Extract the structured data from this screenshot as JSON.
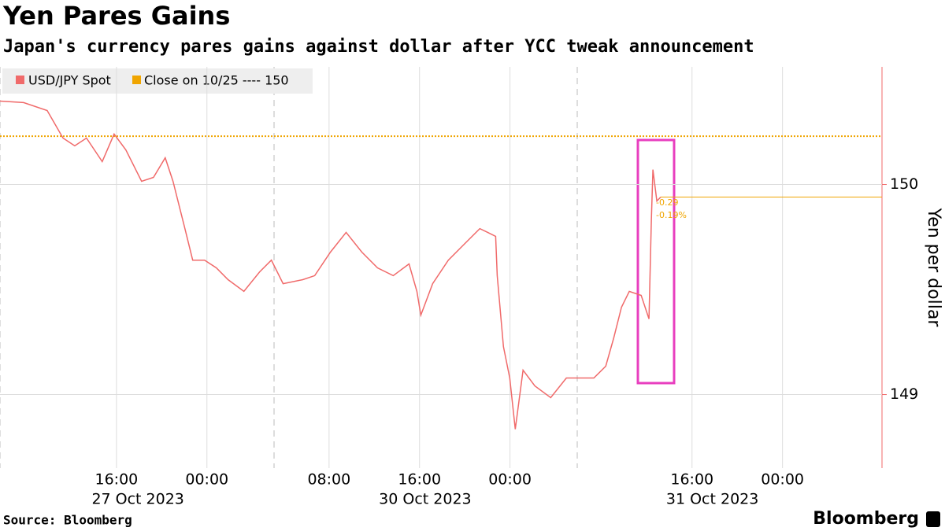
{
  "chart_data": {
    "type": "line",
    "title": "Yen Pares Gains",
    "subtitle": "Japan's currency pares gains against dollar after YCC tweak announcement",
    "y_label": "Yen per dollar",
    "source": "Source: Bloomberg",
    "brand": "Bloomberg",
    "xlim": [
      0,
      78
    ],
    "xticks": [
      {
        "value": 10.3,
        "label": "16:00"
      },
      {
        "value": 18.3,
        "label": "00:00"
      },
      {
        "value": 29.1,
        "label": "08:00"
      },
      {
        "value": 37.1,
        "label": "16:00"
      },
      {
        "value": 45.1,
        "label": "00:00"
      },
      {
        "value": 61.2,
        "label": "16:00"
      },
      {
        "value": 69.2,
        "label": "00:00"
      }
    ],
    "date_labels": [
      {
        "value": 12.2,
        "label": "27 Oct 2023"
      },
      {
        "value": 37.6,
        "label": "30 Oct 2023"
      },
      {
        "value": 63.0,
        "label": "31 Oct 2023"
      }
    ],
    "ylim": [
      148.65,
      150.56
    ],
    "yticks": [
      149,
      150
    ],
    "grid": true,
    "reference_line": {
      "label": "Close on 10/25 ---- 150",
      "value": 150.23,
      "color": "#f0a500"
    },
    "annotations": [
      "-0.29",
      "-0.19%"
    ],
    "series": [
      {
        "name": "USD/JPY Spot",
        "color": "#f06a6a",
        "x": [
          0,
          2.09,
          4.17,
          5.57,
          6.61,
          7.65,
          9.04,
          10.09,
          11.13,
          12.52,
          13.57,
          14.61,
          15.3,
          16.35,
          17.04,
          18.09,
          19.13,
          20.17,
          21.57,
          22.96,
          24.0,
          25.04,
          26.78,
          27.83,
          29.22,
          30.61,
          32.0,
          33.39,
          34.78,
          36.17,
          36.87,
          37.22,
          38.26,
          39.65,
          41.04,
          42.43,
          43.13,
          43.83,
          43.97,
          44.52,
          45.08,
          45.57,
          46.26,
          47.3,
          48.7,
          50.09,
          51.48,
          52.52,
          53.57,
          54.26,
          54.96,
          55.65,
          56.7,
          57.39,
          57.6,
          57.74,
          58.09,
          58.43
        ],
        "values": [
          150.397,
          150.39,
          150.352,
          150.221,
          150.184,
          150.221,
          150.109,
          150.24,
          150.165,
          150.015,
          150.034,
          150.127,
          150.015,
          149.79,
          149.64,
          149.64,
          149.603,
          149.547,
          149.491,
          149.584,
          149.64,
          149.528,
          149.547,
          149.566,
          149.678,
          149.772,
          149.678,
          149.603,
          149.566,
          149.622,
          149.491,
          149.378,
          149.528,
          149.64,
          149.715,
          149.79,
          149.772,
          149.753,
          149.566,
          149.228,
          149.079,
          148.835,
          149.116,
          149.041,
          148.985,
          149.079,
          149.079,
          149.079,
          149.135,
          149.266,
          149.416,
          149.491,
          149.472,
          149.36,
          149.828,
          150.071,
          149.921,
          149.94
        ]
      }
    ]
  }
}
